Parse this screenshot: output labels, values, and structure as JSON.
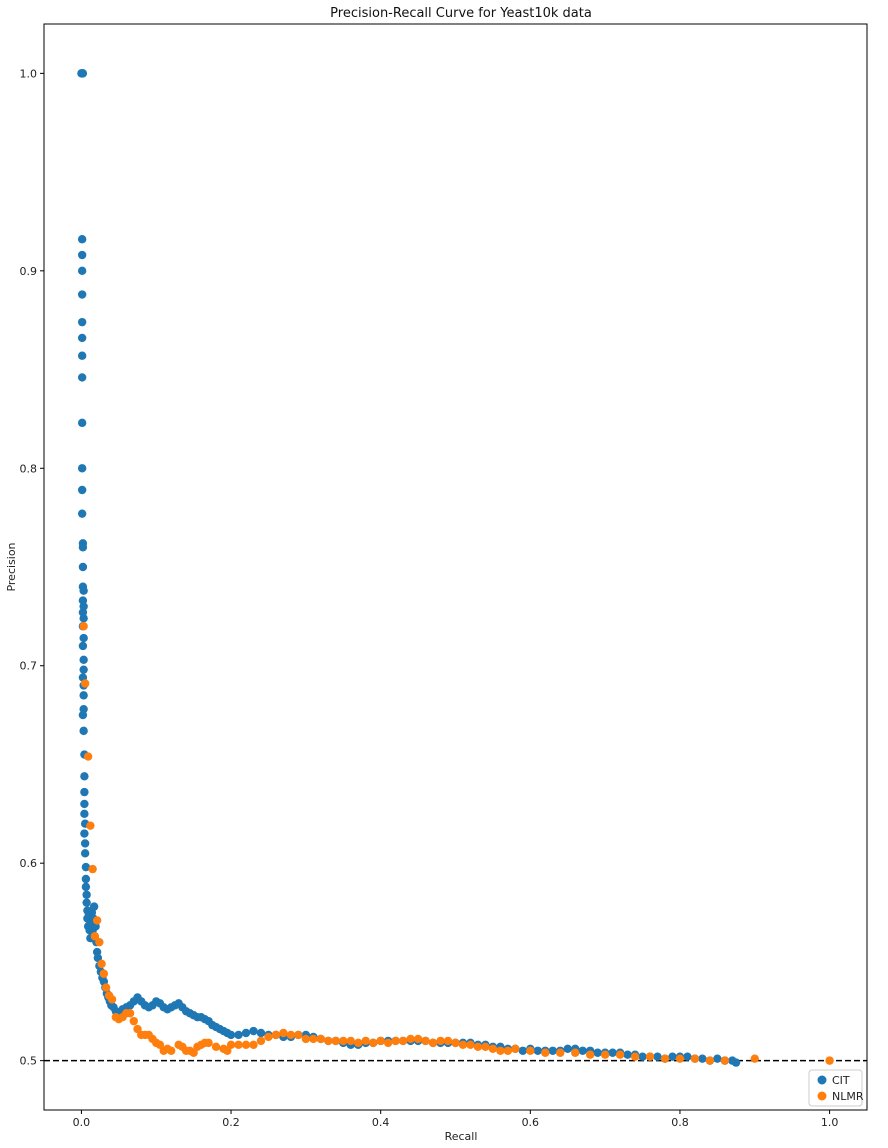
{
  "chart_data": {
    "type": "scatter",
    "title": "Precision-Recall Curve for Yeast10k data",
    "xlabel": "Recall",
    "ylabel": "Precision",
    "xlim": [
      -0.05,
      1.05
    ],
    "ylim": [
      0.475,
      1.025
    ],
    "xticks": [
      "0.0",
      "0.2",
      "0.4",
      "0.6",
      "0.8",
      "1.0"
    ],
    "yticks": [
      "0.5",
      "0.6",
      "0.7",
      "0.8",
      "0.9",
      "1.0"
    ],
    "grid": false,
    "legend_position": "bottom-right",
    "baseline": {
      "y": 0.5,
      "style": "dashed",
      "color": "#000000"
    },
    "series": [
      {
        "name": "CIT",
        "color": "#1f77b4",
        "points": [
          [
            0.0,
            1.0
          ],
          [
            0.001,
            1.0
          ],
          [
            0.002,
            1.0
          ],
          [
            0.001,
            0.916
          ],
          [
            0.001,
            0.908
          ],
          [
            0.001,
            0.9
          ],
          [
            0.001,
            0.888
          ],
          [
            0.001,
            0.874
          ],
          [
            0.001,
            0.866
          ],
          [
            0.001,
            0.857
          ],
          [
            0.001,
            0.846
          ],
          [
            0.001,
            0.823
          ],
          [
            0.001,
            0.8
          ],
          [
            0.001,
            0.789
          ],
          [
            0.001,
            0.777
          ],
          [
            0.002,
            0.762
          ],
          [
            0.002,
            0.76
          ],
          [
            0.002,
            0.75
          ],
          [
            0.002,
            0.74
          ],
          [
            0.003,
            0.738
          ],
          [
            0.002,
            0.733
          ],
          [
            0.003,
            0.73
          ],
          [
            0.002,
            0.727
          ],
          [
            0.003,
            0.724
          ],
          [
            0.002,
            0.72
          ],
          [
            0.003,
            0.714
          ],
          [
            0.002,
            0.71
          ],
          [
            0.003,
            0.703
          ],
          [
            0.003,
            0.698
          ],
          [
            0.002,
            0.694
          ],
          [
            0.003,
            0.69
          ],
          [
            0.003,
            0.685
          ],
          [
            0.003,
            0.678
          ],
          [
            0.002,
            0.675
          ],
          [
            0.003,
            0.667
          ],
          [
            0.004,
            0.655
          ],
          [
            0.004,
            0.644
          ],
          [
            0.004,
            0.636
          ],
          [
            0.004,
            0.63
          ],
          [
            0.004,
            0.625
          ],
          [
            0.005,
            0.62
          ],
          [
            0.004,
            0.615
          ],
          [
            0.005,
            0.61
          ],
          [
            0.005,
            0.605
          ],
          [
            0.006,
            0.598
          ],
          [
            0.006,
            0.592
          ],
          [
            0.006,
            0.588
          ],
          [
            0.007,
            0.584
          ],
          [
            0.007,
            0.58
          ],
          [
            0.008,
            0.576
          ],
          [
            0.008,
            0.572
          ],
          [
            0.009,
            0.568
          ],
          [
            0.01,
            0.574
          ],
          [
            0.011,
            0.566
          ],
          [
            0.012,
            0.562
          ],
          [
            0.013,
            0.57
          ],
          [
            0.014,
            0.575
          ],
          [
            0.015,
            0.566
          ],
          [
            0.016,
            0.572
          ],
          [
            0.017,
            0.578
          ],
          [
            0.018,
            0.562
          ],
          [
            0.019,
            0.568
          ],
          [
            0.02,
            0.56
          ],
          [
            0.021,
            0.555
          ],
          [
            0.022,
            0.552
          ],
          [
            0.024,
            0.548
          ],
          [
            0.026,
            0.545
          ],
          [
            0.028,
            0.542
          ],
          [
            0.03,
            0.54
          ],
          [
            0.032,
            0.537
          ],
          [
            0.034,
            0.534
          ],
          [
            0.036,
            0.532
          ],
          [
            0.038,
            0.53
          ],
          [
            0.04,
            0.528
          ],
          [
            0.043,
            0.527
          ],
          [
            0.046,
            0.525
          ],
          [
            0.05,
            0.524
          ],
          [
            0.055,
            0.526
          ],
          [
            0.06,
            0.527
          ],
          [
            0.065,
            0.528
          ],
          [
            0.07,
            0.53
          ],
          [
            0.075,
            0.532
          ],
          [
            0.08,
            0.53
          ],
          [
            0.085,
            0.528
          ],
          [
            0.09,
            0.527
          ],
          [
            0.095,
            0.528
          ],
          [
            0.1,
            0.53
          ],
          [
            0.105,
            0.529
          ],
          [
            0.11,
            0.527
          ],
          [
            0.115,
            0.526
          ],
          [
            0.12,
            0.527
          ],
          [
            0.125,
            0.528
          ],
          [
            0.13,
            0.529
          ],
          [
            0.135,
            0.527
          ],
          [
            0.14,
            0.525
          ],
          [
            0.145,
            0.524
          ],
          [
            0.15,
            0.523
          ],
          [
            0.155,
            0.522
          ],
          [
            0.16,
            0.522
          ],
          [
            0.165,
            0.521
          ],
          [
            0.17,
            0.52
          ],
          [
            0.175,
            0.518
          ],
          [
            0.18,
            0.517
          ],
          [
            0.185,
            0.516
          ],
          [
            0.19,
            0.515
          ],
          [
            0.195,
            0.514
          ],
          [
            0.2,
            0.513
          ],
          [
            0.21,
            0.513
          ],
          [
            0.22,
            0.514
          ],
          [
            0.23,
            0.515
          ],
          [
            0.24,
            0.514
          ],
          [
            0.25,
            0.513
          ],
          [
            0.26,
            0.513
          ],
          [
            0.27,
            0.512
          ],
          [
            0.28,
            0.512
          ],
          [
            0.29,
            0.513
          ],
          [
            0.3,
            0.513
          ],
          [
            0.31,
            0.512
          ],
          [
            0.32,
            0.511
          ],
          [
            0.33,
            0.51
          ],
          [
            0.34,
            0.51
          ],
          [
            0.35,
            0.509
          ],
          [
            0.36,
            0.508
          ],
          [
            0.37,
            0.508
          ],
          [
            0.38,
            0.509
          ],
          [
            0.39,
            0.509
          ],
          [
            0.4,
            0.51
          ],
          [
            0.41,
            0.51
          ],
          [
            0.42,
            0.51
          ],
          [
            0.43,
            0.51
          ],
          [
            0.44,
            0.51
          ],
          [
            0.45,
            0.51
          ],
          [
            0.46,
            0.51
          ],
          [
            0.47,
            0.509
          ],
          [
            0.48,
            0.509
          ],
          [
            0.49,
            0.509
          ],
          [
            0.5,
            0.509
          ],
          [
            0.51,
            0.509
          ],
          [
            0.52,
            0.509
          ],
          [
            0.53,
            0.508
          ],
          [
            0.54,
            0.508
          ],
          [
            0.55,
            0.507
          ],
          [
            0.56,
            0.507
          ],
          [
            0.57,
            0.506
          ],
          [
            0.58,
            0.506
          ],
          [
            0.59,
            0.505
          ],
          [
            0.6,
            0.506
          ],
          [
            0.61,
            0.505
          ],
          [
            0.62,
            0.505
          ],
          [
            0.63,
            0.505
          ],
          [
            0.64,
            0.505
          ],
          [
            0.65,
            0.506
          ],
          [
            0.66,
            0.506
          ],
          [
            0.67,
            0.505
          ],
          [
            0.68,
            0.505
          ],
          [
            0.69,
            0.504
          ],
          [
            0.7,
            0.504
          ],
          [
            0.71,
            0.504
          ],
          [
            0.72,
            0.504
          ],
          [
            0.73,
            0.503
          ],
          [
            0.74,
            0.503
          ],
          [
            0.75,
            0.502
          ],
          [
            0.76,
            0.502
          ],
          [
            0.77,
            0.502
          ],
          [
            0.78,
            0.501
          ],
          [
            0.79,
            0.502
          ],
          [
            0.8,
            0.502
          ],
          [
            0.81,
            0.502
          ],
          [
            0.82,
            0.501
          ],
          [
            0.83,
            0.501
          ],
          [
            0.84,
            0.5
          ],
          [
            0.85,
            0.501
          ],
          [
            0.86,
            0.5
          ],
          [
            0.87,
            0.5
          ],
          [
            0.875,
            0.499
          ]
        ]
      },
      {
        "name": "NLMR",
        "color": "#ff7f0e",
        "points": [
          [
            0.003,
            0.72
          ],
          [
            0.005,
            0.691
          ],
          [
            0.009,
            0.654
          ],
          [
            0.012,
            0.619
          ],
          [
            0.015,
            0.597
          ],
          [
            0.018,
            0.563
          ],
          [
            0.021,
            0.571
          ],
          [
            0.024,
            0.56
          ],
          [
            0.027,
            0.549
          ],
          [
            0.03,
            0.544
          ],
          [
            0.033,
            0.537
          ],
          [
            0.037,
            0.533
          ],
          [
            0.041,
            0.531
          ],
          [
            0.046,
            0.522
          ],
          [
            0.05,
            0.521
          ],
          [
            0.055,
            0.522
          ],
          [
            0.06,
            0.524
          ],
          [
            0.065,
            0.524
          ],
          [
            0.07,
            0.52
          ],
          [
            0.075,
            0.516
          ],
          [
            0.08,
            0.513
          ],
          [
            0.085,
            0.513
          ],
          [
            0.09,
            0.513
          ],
          [
            0.095,
            0.511
          ],
          [
            0.1,
            0.509
          ],
          [
            0.105,
            0.508
          ],
          [
            0.11,
            0.505
          ],
          [
            0.115,
            0.506
          ],
          [
            0.12,
            0.505
          ],
          [
            0.13,
            0.508
          ],
          [
            0.135,
            0.507
          ],
          [
            0.14,
            0.505
          ],
          [
            0.145,
            0.505
          ],
          [
            0.15,
            0.504
          ],
          [
            0.155,
            0.507
          ],
          [
            0.16,
            0.508
          ],
          [
            0.165,
            0.509
          ],
          [
            0.17,
            0.509
          ],
          [
            0.18,
            0.507
          ],
          [
            0.19,
            0.506
          ],
          [
            0.195,
            0.505
          ],
          [
            0.2,
            0.508
          ],
          [
            0.21,
            0.508
          ],
          [
            0.22,
            0.508
          ],
          [
            0.23,
            0.508
          ],
          [
            0.24,
            0.51
          ],
          [
            0.25,
            0.512
          ],
          [
            0.26,
            0.513
          ],
          [
            0.27,
            0.514
          ],
          [
            0.28,
            0.513
          ],
          [
            0.29,
            0.513
          ],
          [
            0.3,
            0.511
          ],
          [
            0.31,
            0.511
          ],
          [
            0.32,
            0.511
          ],
          [
            0.33,
            0.51
          ],
          [
            0.34,
            0.51
          ],
          [
            0.35,
            0.51
          ],
          [
            0.36,
            0.51
          ],
          [
            0.37,
            0.509
          ],
          [
            0.38,
            0.51
          ],
          [
            0.39,
            0.509
          ],
          [
            0.4,
            0.51
          ],
          [
            0.41,
            0.509
          ],
          [
            0.42,
            0.51
          ],
          [
            0.43,
            0.51
          ],
          [
            0.44,
            0.511
          ],
          [
            0.45,
            0.511
          ],
          [
            0.46,
            0.51
          ],
          [
            0.47,
            0.509
          ],
          [
            0.48,
            0.51
          ],
          [
            0.49,
            0.51
          ],
          [
            0.5,
            0.509
          ],
          [
            0.51,
            0.508
          ],
          [
            0.52,
            0.508
          ],
          [
            0.53,
            0.507
          ],
          [
            0.54,
            0.507
          ],
          [
            0.55,
            0.506
          ],
          [
            0.56,
            0.505
          ],
          [
            0.57,
            0.505
          ],
          [
            0.58,
            0.506
          ],
          [
            0.6,
            0.505
          ],
          [
            0.62,
            0.504
          ],
          [
            0.64,
            0.504
          ],
          [
            0.66,
            0.504
          ],
          [
            0.68,
            0.503
          ],
          [
            0.7,
            0.503
          ],
          [
            0.72,
            0.503
          ],
          [
            0.74,
            0.502
          ],
          [
            0.76,
            0.502
          ],
          [
            0.78,
            0.501
          ],
          [
            0.8,
            0.501
          ],
          [
            0.82,
            0.501
          ],
          [
            0.84,
            0.5
          ],
          [
            0.86,
            0.5
          ],
          [
            0.9,
            0.501
          ],
          [
            1.0,
            0.5
          ]
        ]
      }
    ]
  }
}
